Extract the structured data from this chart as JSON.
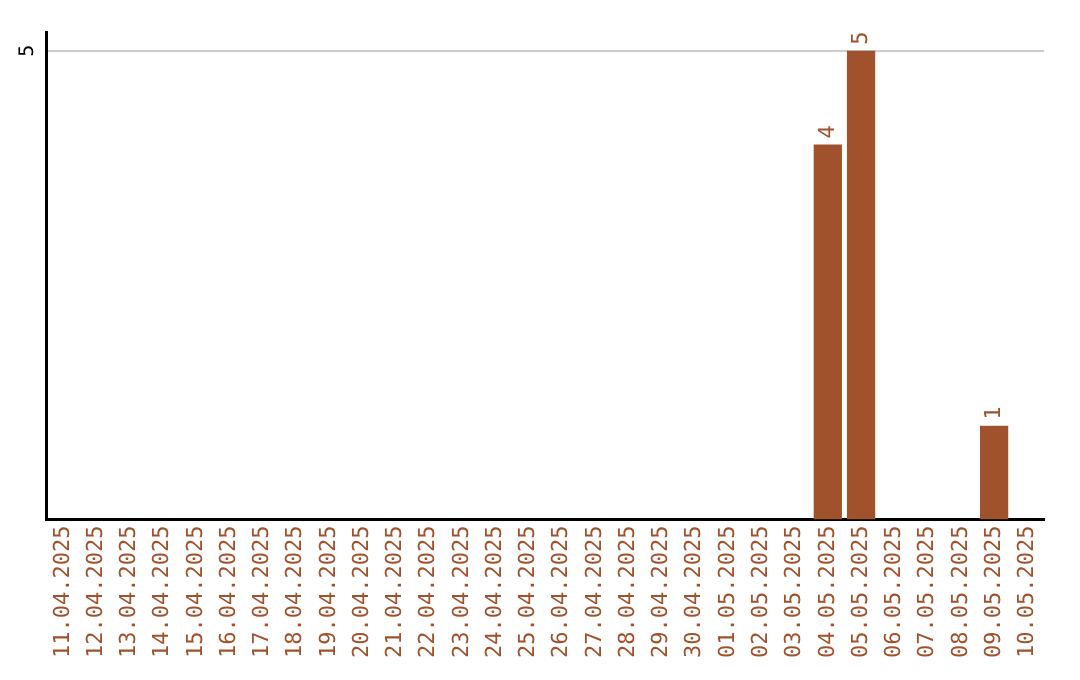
{
  "chart_data": {
    "type": "bar",
    "categories": [
      "11.04.2025",
      "12.04.2025",
      "13.04.2025",
      "14.04.2025",
      "15.04.2025",
      "16.04.2025",
      "17.04.2025",
      "18.04.2025",
      "19.04.2025",
      "20.04.2025",
      "21.04.2025",
      "22.04.2025",
      "23.04.2025",
      "24.04.2025",
      "25.04.2025",
      "26.04.2025",
      "27.04.2025",
      "28.04.2025",
      "29.04.2025",
      "30.04.2025",
      "01.05.2025",
      "02.05.2025",
      "03.05.2025",
      "04.05.2025",
      "05.05.2025",
      "06.05.2025",
      "07.05.2025",
      "08.05.2025",
      "09.05.2025",
      "10.05.2025"
    ],
    "values": [
      null,
      null,
      null,
      null,
      null,
      null,
      null,
      null,
      null,
      null,
      null,
      null,
      null,
      null,
      null,
      null,
      null,
      null,
      null,
      null,
      null,
      null,
      null,
      4,
      5,
      null,
      null,
      null,
      1,
      null
    ],
    "color": "#a0522d",
    "ylim": [
      0,
      5.2
    ],
    "yticks": [
      5
    ],
    "grid": "y",
    "data_labels": true,
    "legend": false
  }
}
